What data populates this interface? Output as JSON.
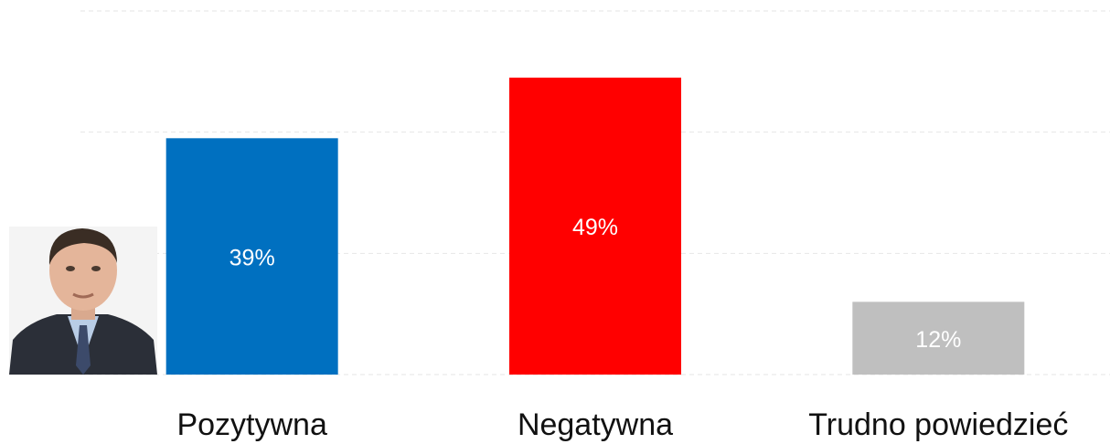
{
  "chart_data": {
    "type": "bar",
    "categories": [
      "Pozytywna",
      "Negatywna",
      "Trudno powiedzieć"
    ],
    "values": [
      39,
      49,
      12
    ],
    "value_labels": [
      "39%",
      "49%",
      "12%"
    ],
    "colors": [
      "#0070c0",
      "#ff0000",
      "#bfbfbf"
    ],
    "ylim": [
      0,
      60
    ],
    "yticks": [
      0,
      20,
      40,
      60
    ],
    "grid": true
  }
}
